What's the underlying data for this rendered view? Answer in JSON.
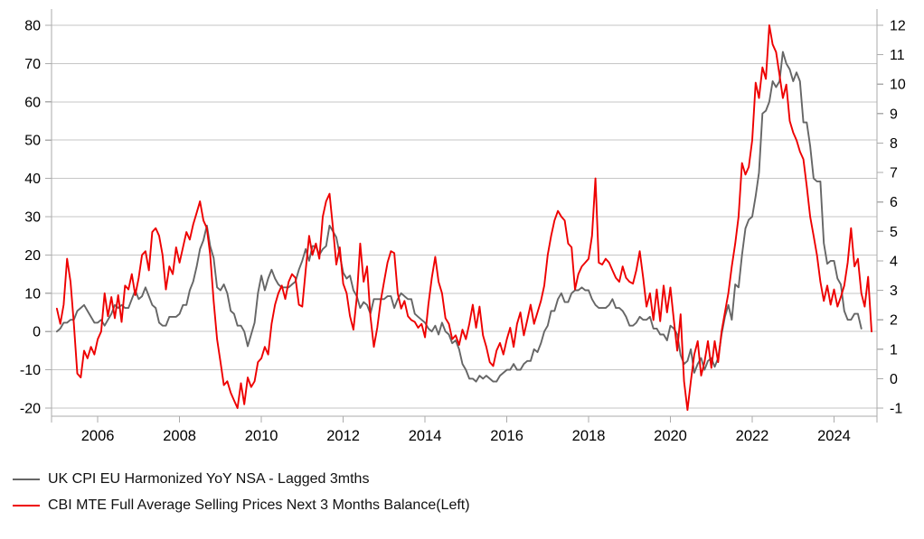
{
  "chart_data": {
    "type": "line",
    "title": "",
    "xlabel": "",
    "ylabel_left": "",
    "ylabel_right": "",
    "grid": "horizontal",
    "legend_position": "bottom-left",
    "x_axis": {
      "lim": [
        2004.87,
        2025.05
      ],
      "ticks": [
        2006,
        2008,
        2010,
        2012,
        2014,
        2016,
        2018,
        2020,
        2022,
        2024
      ],
      "edge_ticks": true
    },
    "y_axis_left": {
      "lim": [
        -20,
        80
      ],
      "ticks": [
        -20,
        -10,
        0,
        10,
        20,
        30,
        40,
        50,
        60,
        70,
        80
      ]
    },
    "y_axis_right": {
      "lim": [
        -1,
        12
      ],
      "ticks": [
        -1,
        0,
        1,
        2,
        3,
        4,
        5,
        6,
        7,
        8,
        9,
        10,
        11,
        12
      ]
    },
    "series": [
      {
        "name": "UK CPI EU Harmonized YoY NSA - Lagged 3mths",
        "axis": "right",
        "color": "#666666",
        "start_year": 2005,
        "start_month": 1,
        "frequency": "monthly",
        "values": [
          1.6,
          1.7,
          1.9,
          1.9,
          2.0,
          2.0,
          2.3,
          2.4,
          2.5,
          2.3,
          2.1,
          1.9,
          1.9,
          2.0,
          1.8,
          2.0,
          2.2,
          2.5,
          2.4,
          2.5,
          2.4,
          2.4,
          2.7,
          3.0,
          2.7,
          2.8,
          3.1,
          2.8,
          2.5,
          2.4,
          1.9,
          1.8,
          1.8,
          2.1,
          2.1,
          2.1,
          2.2,
          2.5,
          2.5,
          3.0,
          3.3,
          3.8,
          4.4,
          4.7,
          5.2,
          4.5,
          4.1,
          3.1,
          3.0,
          3.2,
          2.9,
          2.3,
          2.2,
          1.8,
          1.8,
          1.6,
          1.1,
          1.5,
          1.9,
          2.9,
          3.5,
          3.0,
          3.4,
          3.7,
          3.4,
          3.2,
          3.1,
          3.1,
          3.1,
          3.2,
          3.3,
          3.7,
          4.0,
          4.4,
          4.0,
          4.5,
          4.5,
          4.2,
          4.4,
          4.5,
          5.2,
          5.0,
          4.8,
          4.2,
          3.6,
          3.4,
          3.5,
          3.0,
          2.8,
          2.4,
          2.6,
          2.5,
          2.2,
          2.7,
          2.7,
          2.7,
          2.7,
          2.8,
          2.8,
          2.4,
          2.7,
          2.9,
          2.8,
          2.7,
          2.7,
          2.2,
          2.1,
          2.0,
          1.9,
          1.7,
          1.6,
          1.8,
          1.5,
          1.9,
          1.6,
          1.5,
          1.2,
          1.3,
          1.0,
          0.5,
          0.3,
          0.0,
          0.0,
          -0.1,
          0.1,
          0.0,
          0.1,
          0.0,
          -0.1,
          -0.1,
          0.1,
          0.2,
          0.3,
          0.3,
          0.5,
          0.3,
          0.3,
          0.5,
          0.6,
          0.6,
          1.0,
          0.9,
          1.2,
          1.6,
          1.8,
          2.3,
          2.3,
          2.7,
          2.9,
          2.6,
          2.6,
          2.9,
          3.0,
          3.0,
          3.1,
          3.0,
          3.0,
          2.7,
          2.5,
          2.4,
          2.4,
          2.4,
          2.5,
          2.7,
          2.4,
          2.4,
          2.3,
          2.1,
          1.8,
          1.8,
          1.9,
          2.1,
          2.0,
          2.0,
          2.1,
          1.7,
          1.7,
          1.5,
          1.5,
          1.3,
          1.8,
          1.7,
          1.5,
          0.8,
          0.5,
          0.6,
          1.0,
          0.2,
          0.5,
          0.7,
          0.3,
          0.6,
          0.7,
          0.4,
          0.7,
          1.5,
          2.1,
          2.5,
          2.0,
          3.2,
          3.1,
          4.2,
          5.1,
          5.4,
          5.5,
          6.2,
          7.0,
          9.0,
          9.1,
          9.4,
          10.1,
          9.9,
          10.1,
          11.1,
          10.7,
          10.5,
          10.1,
          10.4,
          10.1,
          8.7,
          8.7,
          7.9,
          6.8,
          6.7,
          6.7,
          4.6,
          3.9,
          4.0,
          4.0,
          3.4,
          3.2,
          2.3,
          2.0,
          2.0,
          2.2,
          2.2,
          1.7
        ]
      },
      {
        "name": "CBI MTE Full Average Selling Prices Next 3 Months Balance(Left)",
        "axis": "left",
        "color": "#ee0000",
        "start_year": 2005,
        "start_month": 1,
        "frequency": "monthly",
        "values": [
          6,
          2,
          7,
          19,
          13,
          2,
          -11,
          -12,
          -5,
          -7,
          -4,
          -6,
          -2,
          0,
          10,
          4,
          9,
          3.5,
          9.5,
          2.5,
          12,
          11,
          15,
          9.5,
          14,
          20,
          21,
          16,
          26,
          27,
          25,
          20,
          11,
          17,
          15,
          22,
          18,
          22,
          26,
          24,
          28,
          31,
          34,
          29,
          27,
          20,
          8,
          -2,
          -8,
          -14,
          -13,
          -16,
          -18,
          -20,
          -13.5,
          -19,
          -12,
          -14.5,
          -13,
          -8,
          -7,
          -4,
          -6,
          2,
          7,
          10,
          12,
          8.5,
          13,
          15,
          14,
          7,
          6.5,
          16,
          25,
          20,
          23,
          19,
          30,
          34,
          36,
          27,
          17.5,
          22,
          12.5,
          10,
          4,
          0.5,
          9,
          23,
          13,
          17,
          4,
          -4,
          1,
          8,
          13,
          18,
          21,
          20.5,
          10,
          6,
          8,
          4,
          3,
          2.5,
          1,
          2,
          -1.5,
          7,
          14,
          19.5,
          13,
          10,
          3.5,
          2,
          -2,
          -1,
          -3.5,
          0.5,
          -2,
          2,
          7,
          1,
          6.5,
          -1,
          -4,
          -8,
          -9,
          -5,
          -3,
          -6,
          -2,
          1,
          -4,
          2,
          5,
          -1,
          3,
          7,
          2,
          5,
          8,
          12,
          20,
          25,
          29,
          31.5,
          30,
          29,
          23,
          22,
          11,
          15,
          17,
          18,
          19,
          25,
          40,
          18,
          17.5,
          19,
          18,
          16,
          14,
          13,
          17,
          14,
          13,
          12.5,
          16,
          21,
          14,
          6.5,
          10,
          3,
          11,
          2.7,
          12,
          5,
          11.5,
          3,
          -5,
          4.5,
          -13,
          -20.5,
          -13,
          -6,
          -2.5,
          -11.5,
          -8,
          -2.5,
          -9.5,
          -2.5,
          -8,
          0,
          5,
          10,
          17,
          23,
          30,
          44,
          41,
          43,
          50,
          65,
          61,
          69,
          66,
          80,
          75,
          73,
          67,
          61,
          64.5,
          55,
          52,
          50,
          47,
          45,
          38,
          30,
          25,
          20,
          13,
          8,
          12,
          7,
          11,
          6.5,
          9,
          12,
          18,
          27,
          17,
          19,
          10,
          6.5,
          14.3,
          0
        ]
      }
    ]
  },
  "legend": {
    "items": [
      {
        "label": "UK CPI EU Harmonized YoY NSA - Lagged 3mths",
        "color": "#666666"
      },
      {
        "label": "CBI MTE Full Average Selling Prices Next 3 Months Balance(Left)",
        "color": "#ee0000"
      }
    ]
  },
  "styles": {
    "grid_color": "#c6c6c6",
    "axis_color": "#ababab",
    "tick_label_color": "#000000",
    "background": "#ffffff"
  }
}
